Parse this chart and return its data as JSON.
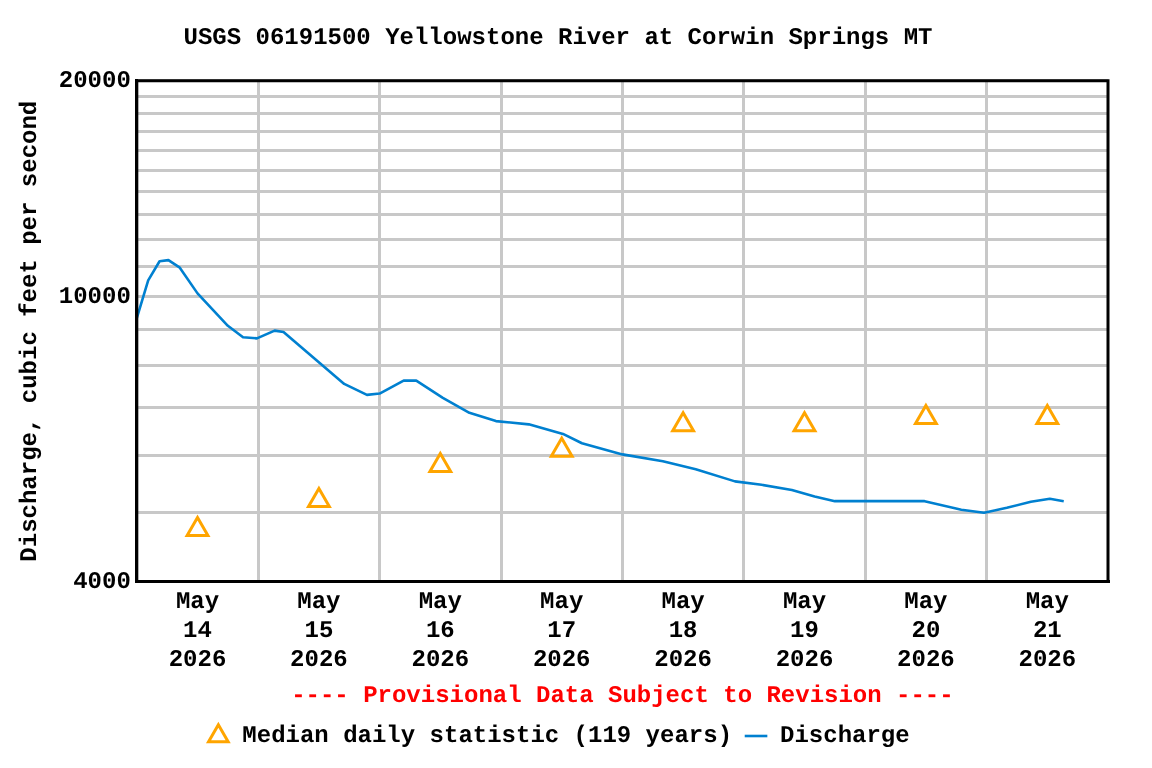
{
  "chart_data": {
    "type": "line",
    "title": "USGS 06191500 Yellowstone River at Corwin Springs MT",
    "ylabel": "Discharge, cubic feet per second",
    "annotations": [
      "---- Provisional Data Subject to Revision ----"
    ],
    "xlim": [
      "2026-05-14T00:00",
      "2026-05-22T00:00"
    ],
    "xticks": [
      {
        "value": "2026-05-14T12:00",
        "label": "May 14 2026"
      },
      {
        "value": "2026-05-15T00:00",
        "label": null
      },
      {
        "value": "2026-05-15T12:00",
        "label": "May 15 2026"
      },
      {
        "value": "2026-05-16T00:00",
        "label": null
      },
      {
        "value": "2026-05-16T12:00",
        "label": "May 16 2026"
      },
      {
        "value": "2026-05-17T00:00",
        "label": null
      },
      {
        "value": "2026-05-17T12:00",
        "label": "May 17 2026"
      },
      {
        "value": "2026-05-18T00:00",
        "label": null
      },
      {
        "value": "2026-05-18T12:00",
        "label": "May 18 2026"
      },
      {
        "value": "2026-05-19T00:00",
        "label": null
      },
      {
        "value": "2026-05-19T12:00",
        "label": "May 19 2026"
      },
      {
        "value": "2026-05-20T00:00",
        "label": null
      },
      {
        "value": "2026-05-20T12:00",
        "label": "May 20 2026"
      },
      {
        "value": "2026-05-21T00:00",
        "label": null
      },
      {
        "value": "2026-05-21T12:00",
        "label": "May 21 2026"
      }
    ],
    "ylim": [
      4000,
      20000
    ],
    "yticks": [
      4000,
      {
        "value": 5000,
        "label": null
      },
      {
        "value": 6000,
        "label": null
      },
      {
        "value": 7000,
        "label": null
      },
      {
        "value": 8000,
        "label": null
      },
      {
        "value": 9000,
        "label": null
      },
      10000,
      {
        "value": 11000,
        "label": null
      },
      {
        "value": 12000,
        "label": null
      },
      {
        "value": 13000,
        "label": null
      },
      {
        "value": 14000,
        "label": null
      },
      {
        "value": 15000,
        "label": null
      },
      {
        "value": 16000,
        "label": null
      },
      {
        "value": 17000,
        "label": null
      },
      {
        "value": 18000,
        "label": null
      },
      {
        "value": 19000,
        "label": null
      },
      20000
    ],
    "log": "y",
    "grid": true,
    "legend": "bottom",
    "series": [
      {
        "name": "Median daily statistic (119 years)",
        "type": "scatter",
        "marker": "triangle",
        "color": "#ffa500",
        "x": [
          "2026-05-14T12:00",
          "2026-05-15T12:00",
          "2026-05-16T12:00",
          "2026-05-17T12:00",
          "2026-05-18T12:00",
          "2026-05-19T12:00",
          "2026-05-20T12:00",
          "2026-05-21T12:00"
        ],
        "values": [
          4730,
          5190,
          5810,
          6100,
          6620,
          6620,
          6780,
          6780
        ]
      },
      {
        "name": "Discharge",
        "marker": "none",
        "color": "#0080d0",
        "x": [
          "2026-05-14T00:00",
          "2026-05-14T02:15",
          "2026-05-14T04:30",
          "2026-05-14T06:15",
          "2026-05-14T08:30",
          "2026-05-14T12:00",
          "2026-05-14T18:00",
          "2026-05-14T21:00",
          "2026-05-14T23:45",
          "2026-05-15T03:15",
          "2026-05-15T05:00",
          "2026-05-15T11:45",
          "2026-05-15T17:00",
          "2026-05-15T21:30",
          "2026-05-16T00:00",
          "2026-05-16T04:45",
          "2026-05-16T07:15",
          "2026-05-16T12:30",
          "2026-05-16T17:45",
          "2026-05-16T23:00",
          "2026-05-17T05:30",
          "2026-05-17T12:15",
          "2026-05-17T16:00",
          "2026-05-18T00:00",
          "2026-05-18T08:00",
          "2026-05-18T14:30",
          "2026-05-18T22:15",
          "2026-05-19T03:30",
          "2026-05-19T09:30",
          "2026-05-19T14:00",
          "2026-05-19T18:00",
          "2026-05-20T11:45",
          "2026-05-20T19:00",
          "2026-05-20T23:30",
          "2026-05-21T04:00",
          "2026-05-21T08:45",
          "2026-05-21T12:30",
          "2026-05-21T15:15"
        ],
        "values": [
          9330,
          10530,
          11200,
          11240,
          10970,
          10100,
          9100,
          8770,
          8740,
          8960,
          8920,
          8120,
          7550,
          7290,
          7320,
          7630,
          7630,
          7220,
          6880,
          6700,
          6630,
          6430,
          6240,
          6020,
          5890,
          5740,
          5520,
          5460,
          5370,
          5260,
          5180,
          5180,
          5040,
          4990,
          5070,
          5170,
          5220,
          5180
        ]
      }
    ]
  }
}
